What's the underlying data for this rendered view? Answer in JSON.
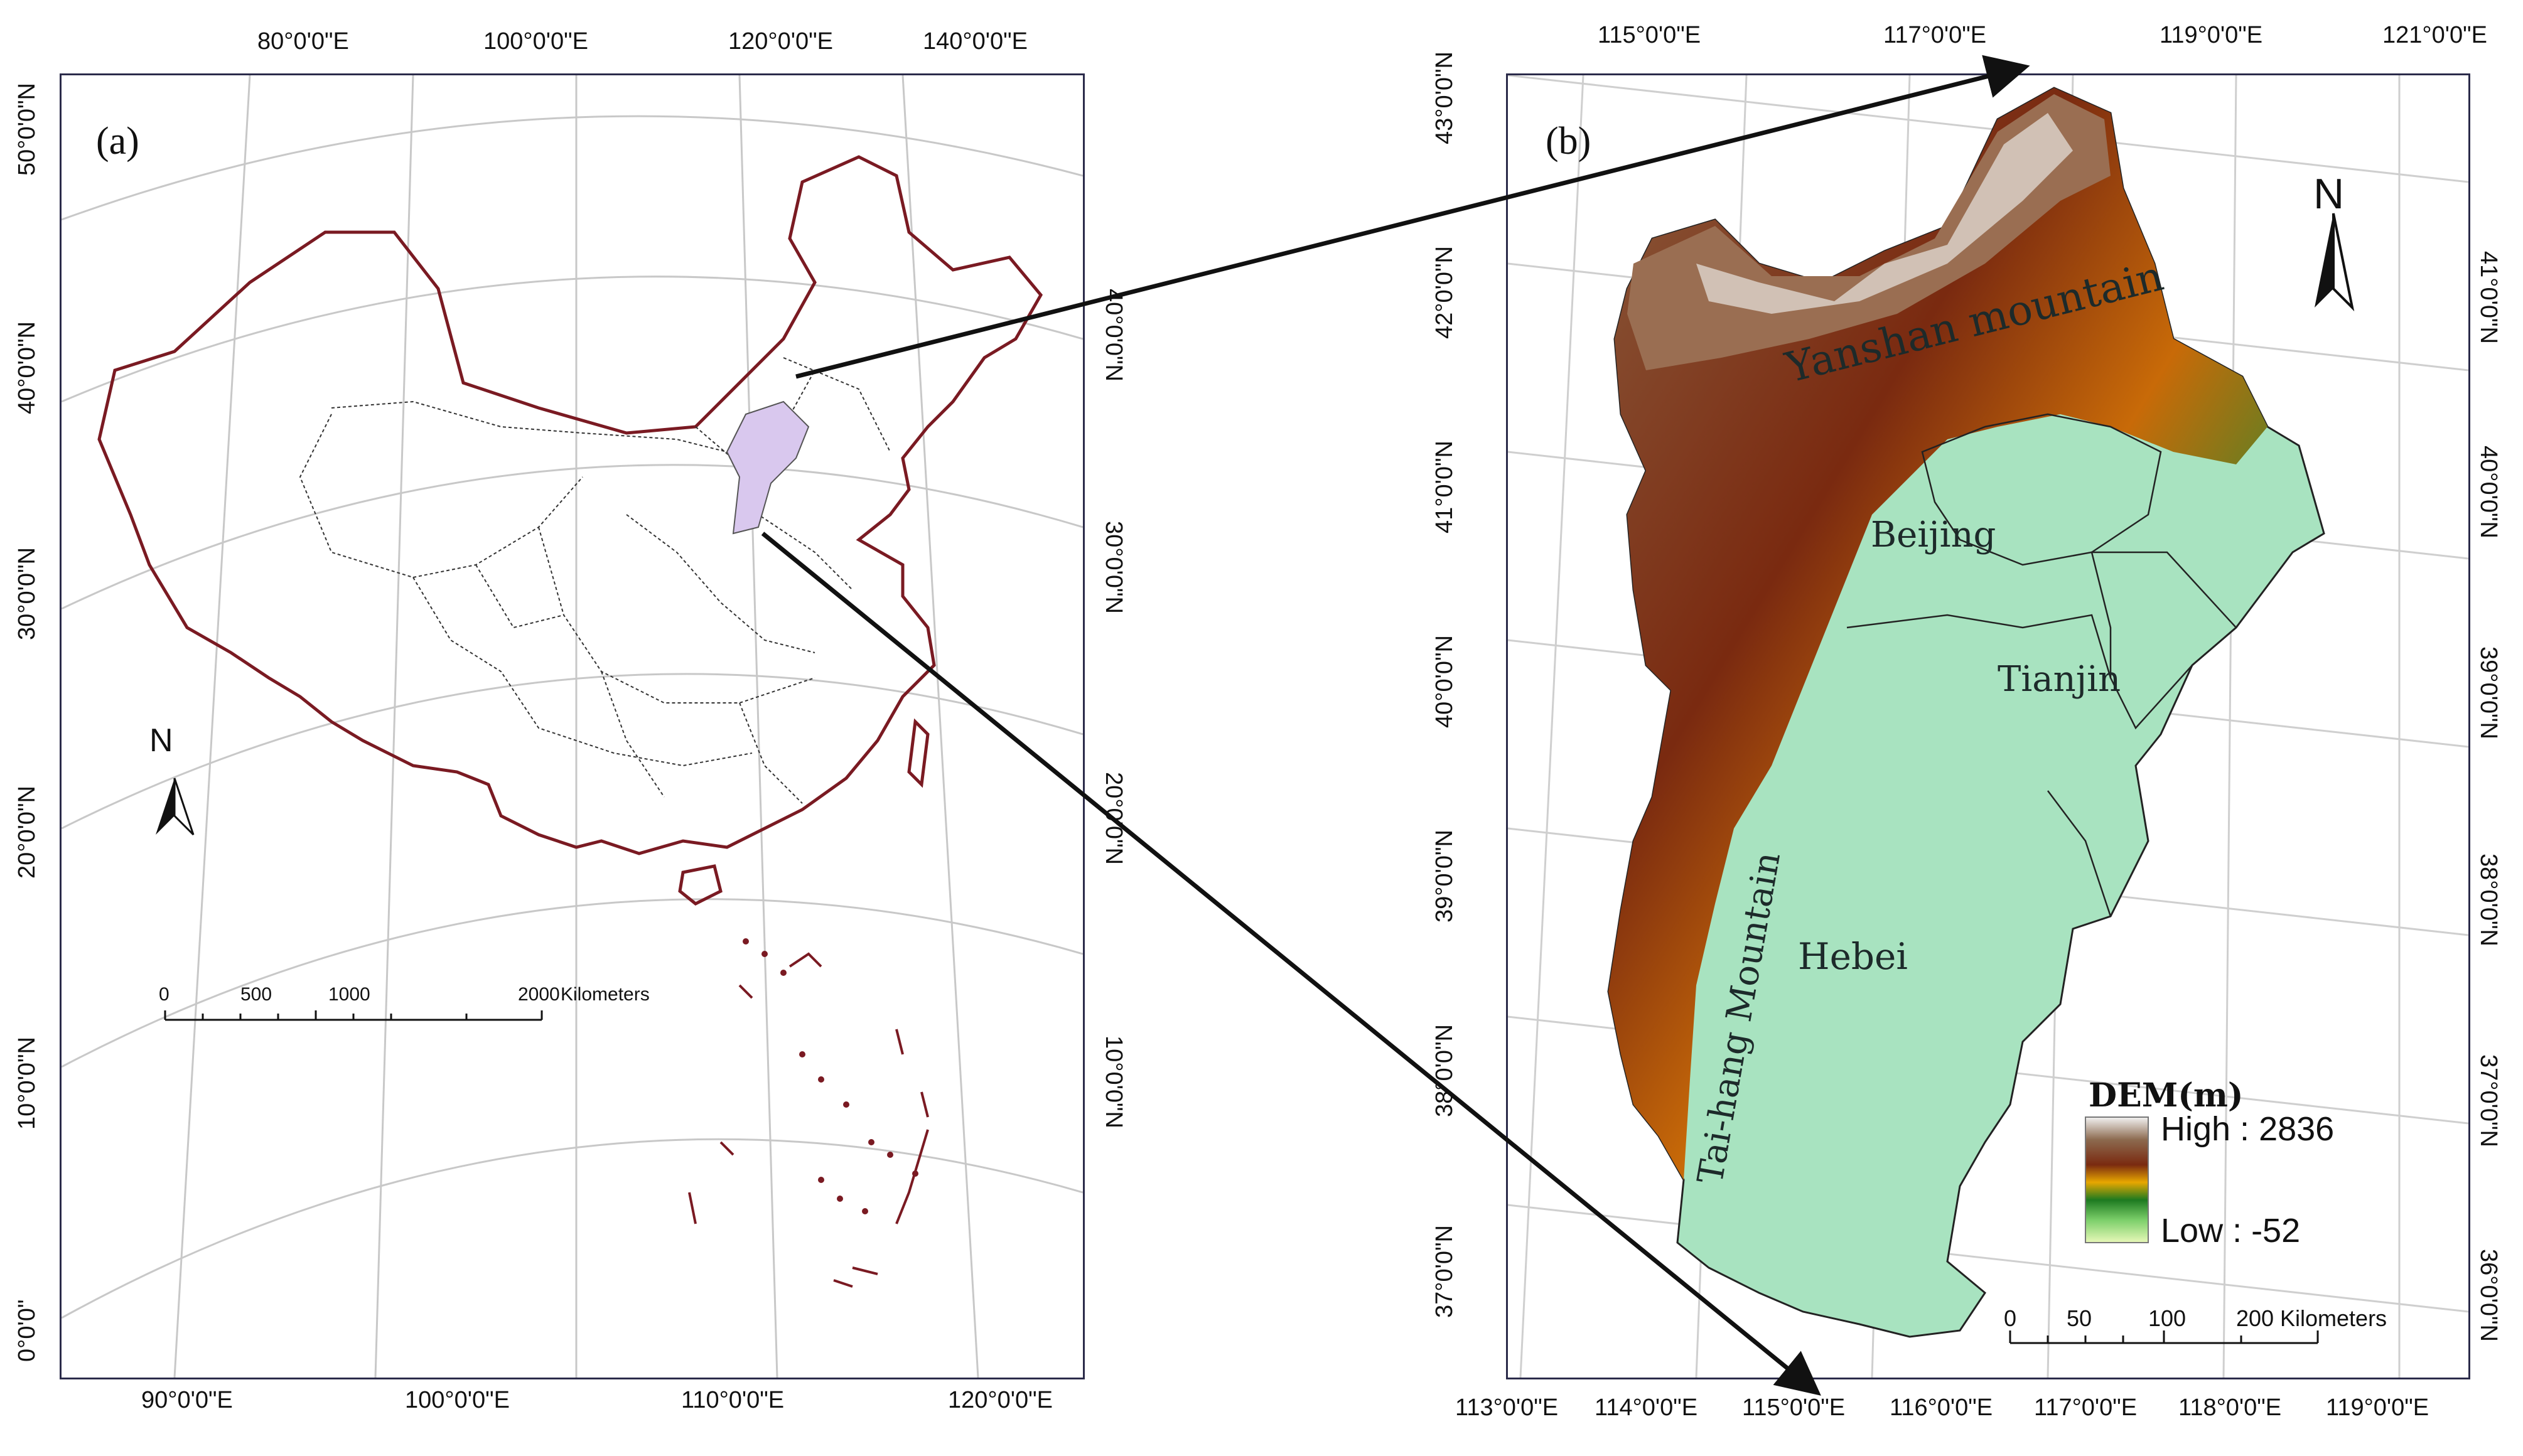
{
  "panel_a": {
    "label": "(a)",
    "top_labels": [
      "80°0'0\"E",
      "100°0'0\"E",
      "120°0'0\"E",
      "140°0'0\"E"
    ],
    "bottom_labels": [
      "90°0'0\"E",
      "100°0'0\"E",
      "110°0'0\"E",
      "120°0'0\"E"
    ],
    "left_labels": [
      "50°0'0\"N",
      "40°0'0\"N",
      "30°0'0\"N",
      "20°0'0\"N",
      "10°0'0\"N",
      "0°0'0\""
    ],
    "right_labels": [
      "40°0'0\"N",
      "30°0'0\"N",
      "20°0'0\"N",
      "10°0'0\"N"
    ],
    "north": "N",
    "scale": {
      "ticks": [
        "0",
        "500",
        "1000",
        "2000"
      ],
      "unit": "Kilometers"
    },
    "highlight_color": "#d9c8ee",
    "border_color": "#7a1a22"
  },
  "panel_b": {
    "label": "(b)",
    "top_labels": [
      "115°0'0\"E",
      "117°0'0\"E",
      "119°0'0\"E",
      "121°0'0\"E"
    ],
    "bottom_labels": [
      "113°0'0\"E",
      "114°0'0\"E",
      "115°0'0\"E",
      "116°0'0\"E",
      "117°0'0\"E",
      "118°0'0\"E",
      "119°0'0\"E"
    ],
    "left_labels": [
      "43°0'0\"N",
      "42°0'0\"N",
      "41°0'0\"N",
      "40°0'0\"N",
      "39°0'0\"N",
      "38°0'0\"N",
      "37°0'0\"N"
    ],
    "right_labels": [
      "41°0'0\"N",
      "40°0'0\"N",
      "39°0'0\"N",
      "38°0'0\"N",
      "37°0'0\"N",
      "36°0'0\"N"
    ],
    "north": "N",
    "places": {
      "yanshan": "Yanshan mountain",
      "beijing": "Beijing",
      "tianjin": "Tianjin",
      "hebei": "Hebei",
      "taihang": "Tai-hang Mountain"
    },
    "legend": {
      "title": "DEM(m)",
      "high": "High : 2836",
      "low": "Low : -52"
    },
    "scale": {
      "ticks": [
        "0",
        "50",
        "100",
        "200"
      ],
      "unit": "Kilometers"
    }
  }
}
